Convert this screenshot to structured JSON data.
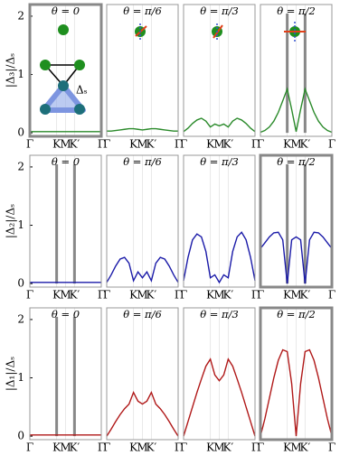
{
  "inset_label": "Δₛ",
  "chart_data": [
    {
      "type": "line",
      "title": "θ = 0",
      "ylabel": "|Δ₃|/Δₛ",
      "thick_frame": true,
      "x": [
        0,
        0.0625,
        0.125,
        0.1875,
        0.25,
        0.3125,
        0.375,
        0.4375,
        0.5,
        0.5625,
        0.625,
        0.6875,
        0.75,
        0.8125,
        0.875,
        0.9375,
        1
      ],
      "series": [
        {
          "color": "#2a8a2a",
          "values": [
            0.02,
            0.02,
            0.02,
            0.02,
            0.02,
            0.02,
            0.02,
            0.02,
            0.02,
            0.02,
            0.02,
            0.02,
            0.02,
            0.02,
            0.02,
            0.02,
            0.02
          ]
        }
      ],
      "xlim": [
        0,
        1
      ],
      "xticks": [
        {
          "value": 0,
          "label": "Γ"
        },
        {
          "value": 0.375,
          "label": "K"
        },
        {
          "value": 0.5,
          "label": "M"
        },
        {
          "value": 0.625,
          "label": "K′"
        },
        {
          "value": 1,
          "label": "Γ"
        }
      ],
      "ylim": [
        -0.06,
        2.2
      ],
      "yticks": [
        0,
        1,
        2
      ]
    },
    {
      "type": "line",
      "title": "θ = π/6",
      "x": [
        0,
        0.0625,
        0.125,
        0.1875,
        0.25,
        0.3125,
        0.375,
        0.4375,
        0.5,
        0.5625,
        0.625,
        0.6875,
        0.75,
        0.8125,
        0.875,
        0.9375,
        1
      ],
      "series": [
        {
          "color": "#2a8a2a",
          "values": [
            0.03,
            0.03,
            0.04,
            0.05,
            0.06,
            0.07,
            0.07,
            0.06,
            0.05,
            0.06,
            0.07,
            0.07,
            0.06,
            0.05,
            0.04,
            0.03,
            0.03
          ]
        }
      ],
      "xlim": [
        0,
        1
      ],
      "xticks": [
        {
          "value": 0,
          "label": "Γ"
        },
        {
          "value": 0.375,
          "label": "K"
        },
        {
          "value": 0.5,
          "label": "M"
        },
        {
          "value": 0.625,
          "label": "K′"
        },
        {
          "value": 1,
          "label": "Γ"
        }
      ],
      "ylim": [
        -0.06,
        2.2
      ]
    },
    {
      "type": "line",
      "title": "θ = π/3",
      "x": [
        0,
        0.0625,
        0.125,
        0.1875,
        0.25,
        0.3125,
        0.375,
        0.4375,
        0.5,
        0.5625,
        0.625,
        0.6875,
        0.75,
        0.8125,
        0.875,
        0.9375,
        1
      ],
      "series": [
        {
          "color": "#2a8a2a",
          "values": [
            0.02,
            0.08,
            0.16,
            0.22,
            0.25,
            0.2,
            0.1,
            0.15,
            0.12,
            0.15,
            0.1,
            0.2,
            0.25,
            0.22,
            0.16,
            0.08,
            0.02
          ]
        }
      ],
      "xlim": [
        0,
        1
      ],
      "xticks": [
        {
          "value": 0,
          "label": "Γ"
        },
        {
          "value": 0.375,
          "label": "K"
        },
        {
          "value": 0.5,
          "label": "M"
        },
        {
          "value": 0.625,
          "label": "K′"
        },
        {
          "value": 1,
          "label": "Γ"
        }
      ],
      "ylim": [
        -0.06,
        2.2
      ]
    },
    {
      "type": "line",
      "title": "θ = π/2",
      "vlines": [
        0.375,
        0.625
      ],
      "x": [
        0,
        0.0625,
        0.125,
        0.1875,
        0.25,
        0.3125,
        0.375,
        0.4375,
        0.5,
        0.5625,
        0.625,
        0.6875,
        0.75,
        0.8125,
        0.875,
        0.9375,
        1
      ],
      "series": [
        {
          "color": "#2a8a2a",
          "values": [
            0.01,
            0.04,
            0.1,
            0.2,
            0.35,
            0.55,
            0.75,
            0.4,
            0.02,
            0.4,
            0.75,
            0.55,
            0.35,
            0.2,
            0.1,
            0.04,
            0.01
          ]
        }
      ],
      "xlim": [
        0,
        1
      ],
      "xticks": [
        {
          "value": 0,
          "label": "Γ"
        },
        {
          "value": 0.375,
          "label": "K"
        },
        {
          "value": 0.5,
          "label": "M"
        },
        {
          "value": 0.625,
          "label": "K′"
        },
        {
          "value": 1,
          "label": "Γ"
        }
      ],
      "ylim": [
        -0.06,
        2.2
      ]
    },
    {
      "type": "line",
      "title": "θ = 0",
      "ylabel": "|Δ₂|/Δₛ",
      "vlines": [
        0.375,
        0.625
      ],
      "x": [
        0,
        0.0625,
        0.125,
        0.1875,
        0.25,
        0.3125,
        0.375,
        0.4375,
        0.5,
        0.5625,
        0.625,
        0.6875,
        0.75,
        0.8125,
        0.875,
        0.9375,
        1
      ],
      "series": [
        {
          "color": "#1a1aa8",
          "values": [
            0.02,
            0.02,
            0.02,
            0.02,
            0.02,
            0.02,
            0.02,
            0.02,
            0.02,
            0.02,
            0.02,
            0.02,
            0.02,
            0.02,
            0.02,
            0.02,
            0.02
          ]
        }
      ],
      "xlim": [
        0,
        1
      ],
      "xticks": [
        {
          "value": 0,
          "label": "Γ"
        },
        {
          "value": 0.375,
          "label": "K"
        },
        {
          "value": 0.5,
          "label": "M"
        },
        {
          "value": 0.625,
          "label": "K′"
        },
        {
          "value": 1,
          "label": "Γ"
        }
      ],
      "ylim": [
        -0.06,
        2.2
      ],
      "yticks": [
        0,
        1,
        2
      ]
    },
    {
      "type": "line",
      "title": "θ = π/6",
      "x": [
        0,
        0.0625,
        0.125,
        0.1875,
        0.25,
        0.3125,
        0.375,
        0.4375,
        0.5,
        0.5625,
        0.625,
        0.6875,
        0.75,
        0.8125,
        0.875,
        0.9375,
        1
      ],
      "series": [
        {
          "color": "#1a1aa8",
          "values": [
            0.02,
            0.15,
            0.3,
            0.42,
            0.45,
            0.35,
            0.05,
            0.2,
            0.1,
            0.2,
            0.05,
            0.35,
            0.45,
            0.42,
            0.3,
            0.15,
            0.02
          ]
        }
      ],
      "xlim": [
        0,
        1
      ],
      "xticks": [
        {
          "value": 0,
          "label": "Γ"
        },
        {
          "value": 0.375,
          "label": "K"
        },
        {
          "value": 0.5,
          "label": "M"
        },
        {
          "value": 0.625,
          "label": "K′"
        },
        {
          "value": 1,
          "label": "Γ"
        }
      ],
      "ylim": [
        -0.06,
        2.2
      ]
    },
    {
      "type": "line",
      "title": "θ = π/3",
      "x": [
        0,
        0.0625,
        0.125,
        0.1875,
        0.25,
        0.3125,
        0.375,
        0.4375,
        0.5,
        0.5625,
        0.625,
        0.6875,
        0.75,
        0.8125,
        0.875,
        0.9375,
        1
      ],
      "series": [
        {
          "color": "#1a1aa8",
          "values": [
            0.05,
            0.45,
            0.75,
            0.85,
            0.8,
            0.55,
            0.1,
            0.15,
            0.02,
            0.15,
            0.1,
            0.55,
            0.8,
            0.88,
            0.75,
            0.45,
            0.05
          ]
        }
      ],
      "xlim": [
        0,
        1
      ],
      "xticks": [
        {
          "value": 0,
          "label": "Γ"
        },
        {
          "value": 0.375,
          "label": "K"
        },
        {
          "value": 0.5,
          "label": "M"
        },
        {
          "value": 0.625,
          "label": "K′"
        },
        {
          "value": 1,
          "label": "Γ"
        }
      ],
      "ylim": [
        -0.06,
        2.2
      ]
    },
    {
      "type": "line",
      "title": "θ = π/2",
      "thick_frame": true,
      "vlines": [
        0.375,
        0.625
      ],
      "x": [
        0,
        0.0625,
        0.125,
        0.1875,
        0.25,
        0.3125,
        0.375,
        0.4375,
        0.5,
        0.5625,
        0.625,
        0.6875,
        0.75,
        0.8125,
        0.875,
        0.9375,
        1
      ],
      "series": [
        {
          "color": "#1a1aa8",
          "values": [
            0.6,
            0.7,
            0.8,
            0.87,
            0.88,
            0.75,
            0.0,
            0.75,
            0.8,
            0.75,
            0.0,
            0.75,
            0.88,
            0.87,
            0.8,
            0.7,
            0.6
          ]
        }
      ],
      "xlim": [
        0,
        1
      ],
      "xticks": [
        {
          "value": 0,
          "label": "Γ"
        },
        {
          "value": 0.375,
          "label": "K"
        },
        {
          "value": 0.5,
          "label": "M"
        },
        {
          "value": 0.625,
          "label": "K′"
        },
        {
          "value": 1,
          "label": "Γ"
        }
      ],
      "ylim": [
        -0.06,
        2.2
      ]
    },
    {
      "type": "line",
      "title": "θ = 0",
      "ylabel": "|Δ₁|/Δₛ",
      "vlines": [
        0.375,
        0.625
      ],
      "x": [
        0,
        0.0625,
        0.125,
        0.1875,
        0.25,
        0.3125,
        0.375,
        0.4375,
        0.5,
        0.5625,
        0.625,
        0.6875,
        0.75,
        0.8125,
        0.875,
        0.9375,
        1
      ],
      "series": [
        {
          "color": "#b01818",
          "values": [
            0.02,
            0.02,
            0.02,
            0.02,
            0.02,
            0.02,
            0.02,
            0.02,
            0.02,
            0.02,
            0.02,
            0.02,
            0.02,
            0.02,
            0.02,
            0.02,
            0.02
          ]
        }
      ],
      "xlim": [
        0,
        1
      ],
      "xticks": [
        {
          "value": 0,
          "label": "Γ"
        },
        {
          "value": 0.375,
          "label": "K"
        },
        {
          "value": 0.5,
          "label": "M"
        },
        {
          "value": 0.625,
          "label": "K′"
        },
        {
          "value": 1,
          "label": "Γ"
        }
      ],
      "ylim": [
        -0.06,
        2.2
      ],
      "yticks": [
        0,
        1,
        2
      ]
    },
    {
      "type": "line",
      "title": "θ = π/6",
      "x": [
        0,
        0.0625,
        0.125,
        0.1875,
        0.25,
        0.3125,
        0.375,
        0.4375,
        0.5,
        0.5625,
        0.625,
        0.6875,
        0.75,
        0.8125,
        0.875,
        0.9375,
        1
      ],
      "series": [
        {
          "color": "#b01818",
          "values": [
            0.0,
            0.12,
            0.25,
            0.37,
            0.47,
            0.55,
            0.75,
            0.6,
            0.55,
            0.6,
            0.75,
            0.55,
            0.47,
            0.37,
            0.25,
            0.12,
            0.0
          ]
        }
      ],
      "xlim": [
        0,
        1
      ],
      "xticks": [
        {
          "value": 0,
          "label": "Γ"
        },
        {
          "value": 0.375,
          "label": "K"
        },
        {
          "value": 0.5,
          "label": "M"
        },
        {
          "value": 0.625,
          "label": "K′"
        },
        {
          "value": 1,
          "label": "Γ"
        }
      ],
      "ylim": [
        -0.06,
        2.2
      ]
    },
    {
      "type": "line",
      "title": "θ = π/3",
      "x": [
        0,
        0.0625,
        0.125,
        0.1875,
        0.25,
        0.3125,
        0.375,
        0.4375,
        0.5,
        0.5625,
        0.625,
        0.6875,
        0.75,
        0.8125,
        0.875,
        0.9375,
        1
      ],
      "series": [
        {
          "color": "#b01818",
          "values": [
            0.0,
            0.25,
            0.5,
            0.75,
            0.98,
            1.2,
            1.32,
            1.05,
            0.95,
            1.05,
            1.32,
            1.2,
            0.98,
            0.75,
            0.5,
            0.25,
            0.0
          ]
        }
      ],
      "xlim": [
        0,
        1
      ],
      "xticks": [
        {
          "value": 0,
          "label": "Γ"
        },
        {
          "value": 0.375,
          "label": "K"
        },
        {
          "value": 0.5,
          "label": "M"
        },
        {
          "value": 0.625,
          "label": "K′"
        },
        {
          "value": 1,
          "label": "Γ"
        }
      ],
      "ylim": [
        -0.06,
        2.2
      ]
    },
    {
      "type": "line",
      "title": "θ = π/2",
      "thick_frame": true,
      "x": [
        0,
        0.0625,
        0.125,
        0.1875,
        0.25,
        0.3125,
        0.375,
        0.4375,
        0.5,
        0.5625,
        0.625,
        0.6875,
        0.75,
        0.8125,
        0.875,
        0.9375,
        1
      ],
      "series": [
        {
          "color": "#b01818",
          "values": [
            0.0,
            0.3,
            0.65,
            1.0,
            1.3,
            1.48,
            1.45,
            0.9,
            0.0,
            0.9,
            1.45,
            1.48,
            1.3,
            1.0,
            0.65,
            0.3,
            0.0
          ]
        }
      ],
      "xlim": [
        0,
        1
      ],
      "xticks": [
        {
          "value": 0,
          "label": "Γ"
        },
        {
          "value": 0.375,
          "label": "K"
        },
        {
          "value": 0.5,
          "label": "M"
        },
        {
          "value": 0.625,
          "label": "K′"
        },
        {
          "value": 1,
          "label": "Γ"
        }
      ],
      "ylim": [
        -0.06,
        2.2
      ]
    }
  ]
}
